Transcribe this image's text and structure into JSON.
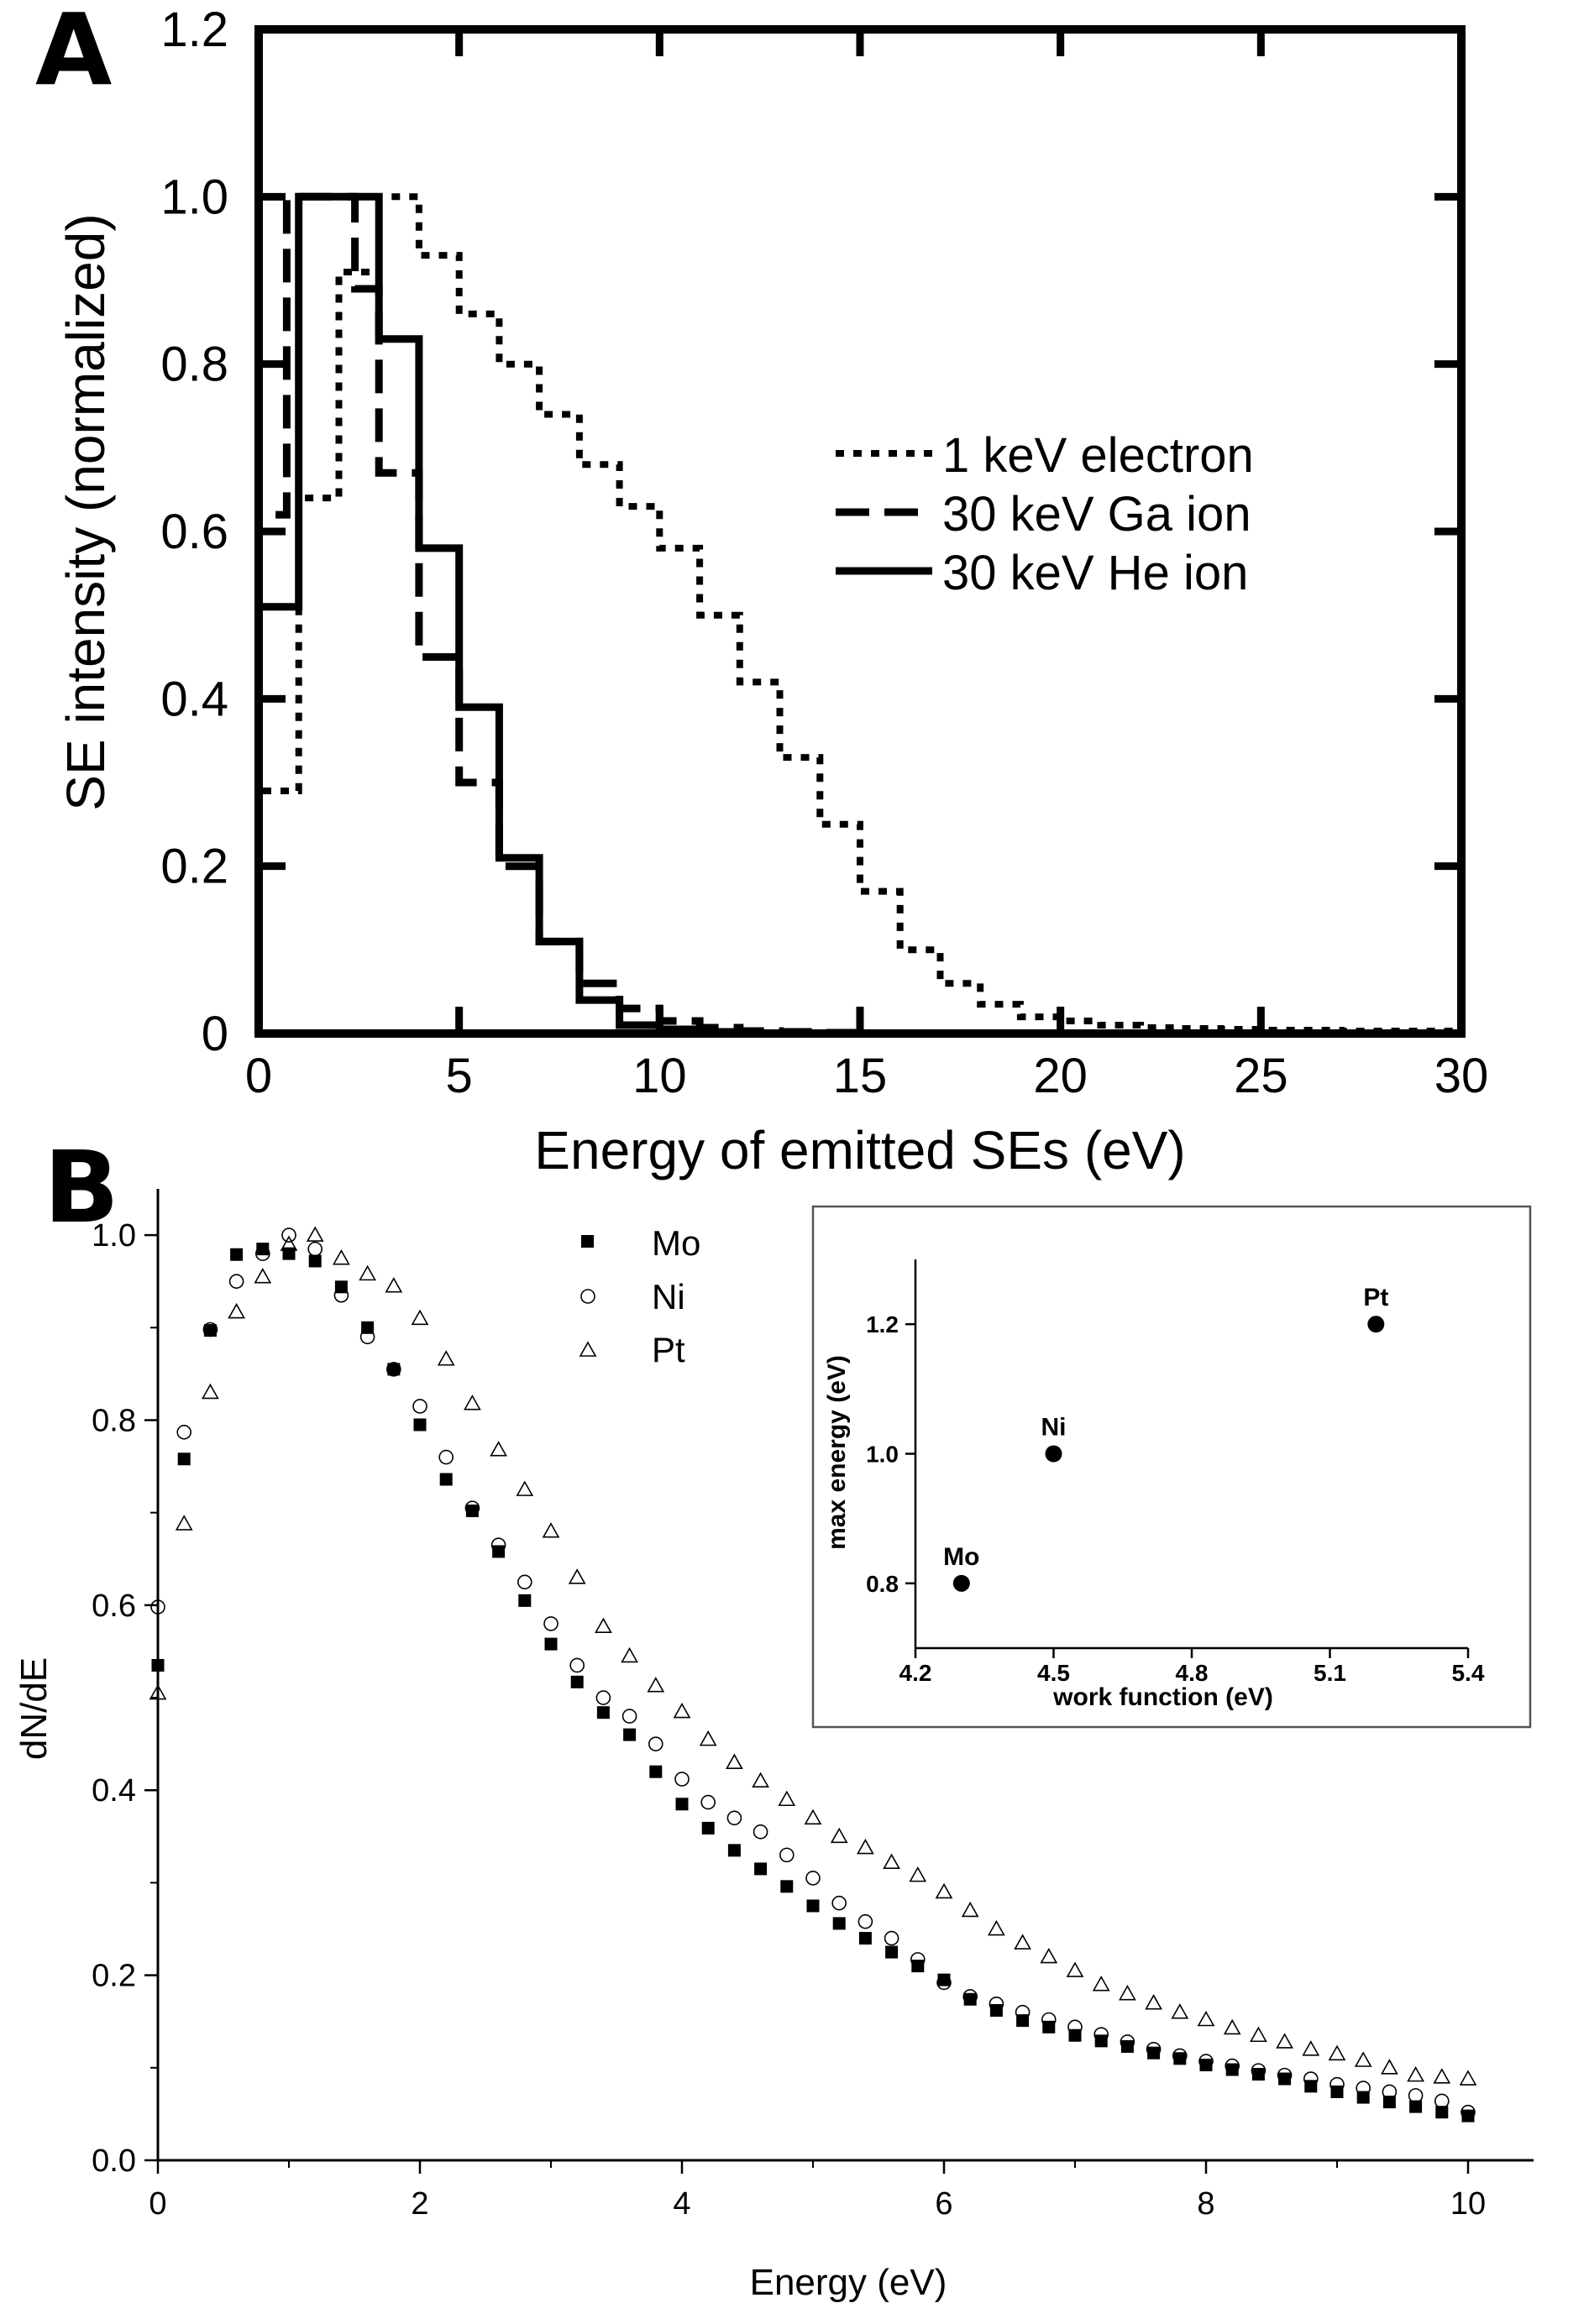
{
  "chart_data": [
    {
      "panel": "A",
      "type": "line",
      "style": "step",
      "xlabel": "Energy of emitted SEs (eV)",
      "ylabel": "SE intensity (normalized)",
      "xlim": [
        0,
        30
      ],
      "ylim": [
        0,
        1.2
      ],
      "xticks": [
        0,
        5,
        10,
        15,
        20,
        25,
        30
      ],
      "xtick_labels": [
        "0",
        "5",
        "10",
        "15",
        "20",
        "25",
        "30"
      ],
      "yticks": [
        0,
        0.2,
        0.4,
        0.6,
        0.8,
        1.0,
        1.2
      ],
      "ytick_labels": [
        "0",
        "0.2",
        "0.4",
        "0.6",
        "0.8",
        "1.0",
        "1.2"
      ],
      "legend_position": "right-middle",
      "series": [
        {
          "name": "1 keV electron",
          "dash": "dotted",
          "edges": [
            0,
            1,
            2,
            3,
            4,
            5,
            6,
            7,
            8,
            9,
            10,
            11,
            12,
            13,
            14,
            15,
            16,
            17,
            18,
            19,
            20,
            21,
            22,
            23,
            24,
            25,
            26,
            27,
            28,
            29,
            30
          ],
          "values": [
            0.29,
            0.64,
            0.91,
            1.0,
            0.93,
            0.86,
            0.8,
            0.74,
            0.68,
            0.63,
            0.58,
            0.5,
            0.42,
            0.33,
            0.25,
            0.17,
            0.1,
            0.06,
            0.035,
            0.02,
            0.015,
            0.01,
            0.007,
            0.006,
            0.005,
            0.004,
            0.004,
            0.003,
            0.003,
            0.003
          ]
        },
        {
          "name": "30 keV Ga ion",
          "dash": "dashed",
          "edges": [
            0,
            0.7,
            1.5,
            2.4,
            3,
            4,
            5,
            6,
            7,
            8,
            9,
            10,
            11,
            12,
            13,
            14,
            15
          ],
          "values": [
            0.62,
            1.0,
            1.0,
            0.89,
            0.67,
            0.45,
            0.3,
            0.2,
            0.11,
            0.06,
            0.03,
            0.015,
            0.007,
            0.003,
            0.002,
            0.001
          ]
        },
        {
          "name": "30 keV He ion",
          "dash": "solid",
          "edges": [
            0,
            1,
            2,
            3,
            4,
            5,
            6,
            7,
            8,
            9,
            10,
            11,
            12
          ],
          "values": [
            0.51,
            1.0,
            1.0,
            0.83,
            0.58,
            0.39,
            0.21,
            0.11,
            0.04,
            0.01,
            0.005,
            0.002
          ]
        }
      ]
    },
    {
      "panel": "B",
      "type": "scatter",
      "xlabel": "Energy (eV)",
      "ylabel": "dN/dE",
      "xlim": [
        0,
        10.5
      ],
      "ylim": [
        0,
        1.05
      ],
      "xticks": [
        0,
        2,
        4,
        6,
        8,
        10
      ],
      "xtick_labels": [
        "0",
        "2",
        "4",
        "6",
        "8",
        "10"
      ],
      "yticks": [
        0,
        0.2,
        0.4,
        0.6,
        0.8,
        1.0
      ],
      "ytick_labels": [
        "0.0",
        "0.2",
        "0.4",
        "0.6",
        "0.8",
        "1.0"
      ],
      "legend_position": "top-center",
      "x": [
        0,
        0.2,
        0.4,
        0.6,
        0.8,
        1.0,
        1.2,
        1.4,
        1.6,
        1.8,
        2.0,
        2.2,
        2.4,
        2.6,
        2.8,
        3.0,
        3.2,
        3.4,
        3.6,
        3.8,
        4.0,
        4.2,
        4.4,
        4.6,
        4.8,
        5.0,
        5.2,
        5.4,
        5.6,
        5.8,
        6.0,
        6.2,
        6.4,
        6.6,
        6.8,
        7.0,
        7.2,
        7.4,
        7.6,
        7.8,
        8.0,
        8.2,
        8.4,
        8.6,
        8.8,
        9.0,
        9.2,
        9.4,
        9.6,
        9.8,
        10.0
      ],
      "series": [
        {
          "name": "Mo",
          "marker": "filled-square",
          "values": [
            0.535,
            0.758,
            0.897,
            0.979,
            0.985,
            0.98,
            0.972,
            0.944,
            0.9,
            0.855,
            0.795,
            0.736,
            0.702,
            0.658,
            0.605,
            0.558,
            0.517,
            0.484,
            0.46,
            0.42,
            0.385,
            0.359,
            0.335,
            0.315,
            0.296,
            0.275,
            0.256,
            0.24,
            0.225,
            0.21,
            0.195,
            0.174,
            0.162,
            0.151,
            0.144,
            0.135,
            0.129,
            0.123,
            0.116,
            0.11,
            0.103,
            0.098,
            0.093,
            0.088,
            0.08,
            0.074,
            0.068,
            0.063,
            0.058,
            0.052,
            0.048
          ]
        },
        {
          "name": "Ni",
          "marker": "open-circle",
          "values": [
            0.598,
            0.787,
            0.898,
            0.95,
            0.98,
            1.0,
            0.985,
            0.935,
            0.89,
            0.855,
            0.815,
            0.76,
            0.705,
            0.665,
            0.625,
            0.58,
            0.535,
            0.5,
            0.48,
            0.45,
            0.412,
            0.387,
            0.37,
            0.355,
            0.33,
            0.305,
            0.278,
            0.258,
            0.24,
            0.217,
            0.192,
            0.177,
            0.169,
            0.16,
            0.152,
            0.144,
            0.136,
            0.128,
            0.12,
            0.113,
            0.107,
            0.102,
            0.097,
            0.092,
            0.088,
            0.082,
            0.078,
            0.074,
            0.07,
            0.064,
            0.052
          ]
        },
        {
          "name": "Pt",
          "marker": "open-triangle",
          "values": [
            0.505,
            0.688,
            0.83,
            0.917,
            0.955,
            0.99,
            1.0,
            0.975,
            0.958,
            0.945,
            0.91,
            0.866,
            0.818,
            0.768,
            0.725,
            0.68,
            0.63,
            0.577,
            0.545,
            0.513,
            0.485,
            0.455,
            0.43,
            0.41,
            0.39,
            0.37,
            0.35,
            0.338,
            0.322,
            0.308,
            0.29,
            0.27,
            0.25,
            0.235,
            0.22,
            0.205,
            0.19,
            0.18,
            0.17,
            0.16,
            0.152,
            0.143,
            0.135,
            0.128,
            0.12,
            0.115,
            0.108,
            0.1,
            0.092,
            0.09,
            0.088
          ]
        }
      ],
      "inset": {
        "type": "scatter",
        "xlabel": "work function (eV)",
        "ylabel": "max energy (eV)",
        "xlim": [
          4.2,
          5.4
        ],
        "ylim": [
          0.7,
          1.3
        ],
        "xticks": [
          4.2,
          4.5,
          4.8,
          5.1,
          5.4
        ],
        "xtick_labels": [
          "4.2",
          "4.5",
          "4.8",
          "5.1",
          "5.4"
        ],
        "yticks": [
          0.8,
          1.0,
          1.2
        ],
        "ytick_labels": [
          "0.8",
          "1.0",
          "1.2"
        ],
        "points": [
          {
            "label": "Mo",
            "x": 4.3,
            "y": 0.8
          },
          {
            "label": "Ni",
            "x": 4.5,
            "y": 1.0
          },
          {
            "label": "Pt",
            "x": 5.2,
            "y": 1.2
          }
        ]
      }
    }
  ],
  "panel_labels": {
    "a": "A",
    "b": "B"
  },
  "colors": {
    "ink": "#000000",
    "background": "#ffffff",
    "inset_frame": "#555555"
  }
}
